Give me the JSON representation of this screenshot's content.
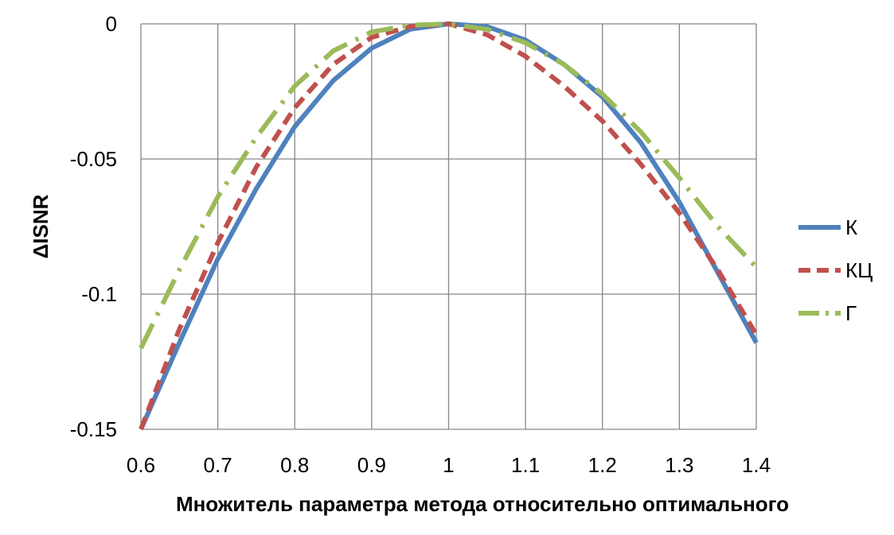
{
  "chart_data": {
    "type": "line",
    "xlabel": "Множитель параметра метода относительно оптимального",
    "ylabel": "ΔISNR",
    "xlim": [
      0.6,
      1.4
    ],
    "ylim": [
      -0.15,
      0
    ],
    "xticks": [
      "0.6",
      "0.7",
      "0.8",
      "0.9",
      "1",
      "1.1",
      "1.2",
      "1.3",
      "1.4"
    ],
    "yticks": [
      "0",
      "-0.05",
      "-0.1",
      "-0.15"
    ],
    "grid": true,
    "legend_position": "right",
    "series": [
      {
        "name": "К",
        "color": "#4F81BD",
        "style": "solid",
        "x": [
          0.6,
          0.65,
          0.7,
          0.75,
          0.8,
          0.85,
          0.9,
          0.95,
          1.0,
          1.05,
          1.1,
          1.15,
          1.2,
          1.25,
          1.3,
          1.35,
          1.4
        ],
        "y": [
          -0.15,
          -0.118,
          -0.087,
          -0.061,
          -0.038,
          -0.021,
          -0.009,
          -0.002,
          0.0,
          -0.001,
          -0.006,
          -0.015,
          -0.027,
          -0.044,
          -0.066,
          -0.092,
          -0.118
        ]
      },
      {
        "name": "КЦ",
        "color": "#C0504D",
        "style": "dashed",
        "x": [
          0.6,
          0.65,
          0.7,
          0.75,
          0.8,
          0.85,
          0.9,
          0.95,
          1.0,
          1.05,
          1.1,
          1.15,
          1.2,
          1.25,
          1.3,
          1.35,
          1.4
        ],
        "y": [
          -0.15,
          -0.113,
          -0.081,
          -0.053,
          -0.031,
          -0.015,
          -0.005,
          -0.001,
          0.0,
          -0.004,
          -0.012,
          -0.023,
          -0.036,
          -0.052,
          -0.07,
          -0.091,
          -0.115
        ]
      },
      {
        "name": "Г",
        "color": "#9BBB59",
        "style": "dashdot",
        "x": [
          0.6,
          0.65,
          0.7,
          0.75,
          0.8,
          0.85,
          0.9,
          0.95,
          1.0,
          1.05,
          1.1,
          1.15,
          1.2,
          1.25,
          1.3,
          1.35,
          1.4
        ],
        "y": [
          -0.12,
          -0.091,
          -0.064,
          -0.042,
          -0.023,
          -0.01,
          -0.003,
          -0.0005,
          0.0,
          -0.002,
          -0.007,
          -0.015,
          -0.026,
          -0.04,
          -0.057,
          -0.075,
          -0.09
        ]
      }
    ]
  }
}
